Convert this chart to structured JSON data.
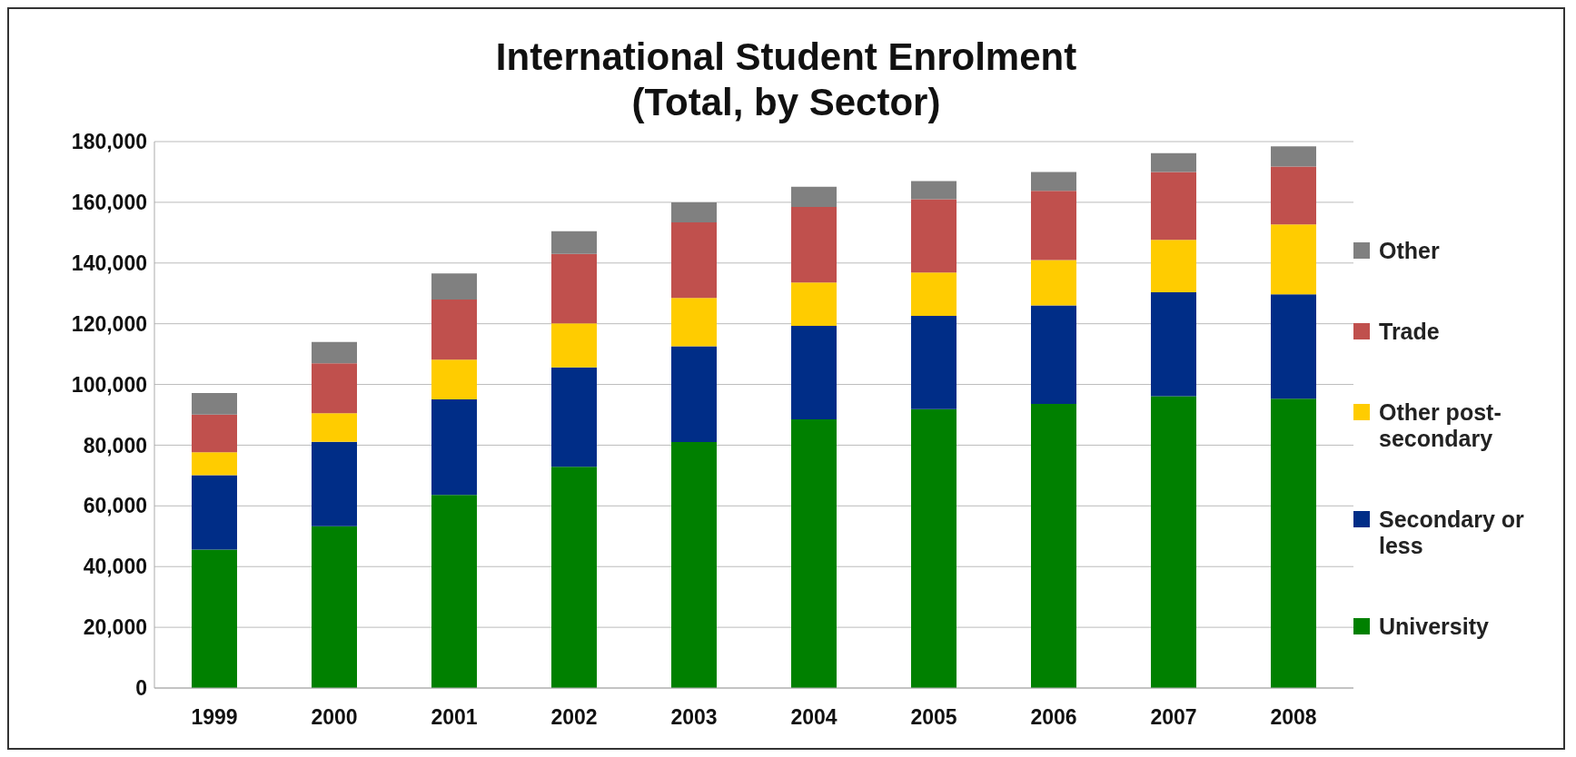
{
  "chart_data": {
    "type": "bar",
    "title": "International Student Enrolment\n(Total, by Sector)",
    "categories": [
      "1999",
      "2000",
      "2001",
      "2002",
      "2003",
      "2004",
      "2005",
      "2006",
      "2007",
      "2008"
    ],
    "stacked": true,
    "series": [
      {
        "name": "University",
        "color": "#008000",
        "values": [
          45600,
          53300,
          63600,
          72900,
          81000,
          88500,
          91900,
          93600,
          96100,
          95300
        ]
      },
      {
        "name": "Secondary or less",
        "color": "#002d87",
        "values": [
          24500,
          27800,
          31500,
          32700,
          31600,
          30800,
          30700,
          32400,
          34300,
          34400
        ]
      },
      {
        "name": "Other post-secondary",
        "color": "#ffcc00",
        "values": [
          7600,
          9400,
          13100,
          14500,
          15900,
          14300,
          14300,
          15000,
          17200,
          23000
        ]
      },
      {
        "name": "Trade",
        "color": "#c0504d",
        "values": [
          12400,
          16500,
          19800,
          22900,
          24900,
          24900,
          24100,
          22800,
          22400,
          19100
        ]
      },
      {
        "name": "Other",
        "color": "#808080",
        "values": [
          7100,
          7000,
          8600,
          7500,
          6600,
          6600,
          6000,
          6200,
          6200,
          6600
        ]
      }
    ],
    "ylim": [
      0,
      180000
    ],
    "yticks": [
      0,
      {
        "value": 20000,
        "label": "20,000"
      },
      {
        "value": 40000,
        "label": "40,000"
      },
      {
        "value": 60000,
        "label": "60,000"
      },
      {
        "value": 80000,
        "label": "80,000"
      },
      {
        "value": 100000,
        "label": "100,000"
      },
      {
        "value": 120000,
        "label": "120,000"
      },
      {
        "value": 140000,
        "label": "140,000"
      },
      {
        "value": 160000,
        "label": "160,000"
      },
      {
        "value": 180000,
        "label": "180,000"
      }
    ],
    "grid": "y",
    "legend": "right"
  }
}
